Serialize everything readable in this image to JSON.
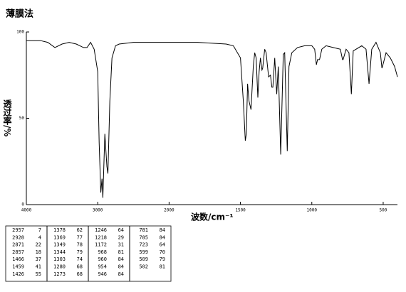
{
  "chart_data": {
    "type": "line",
    "title": "薄膜法",
    "x_label": "波数/cm⁻¹",
    "y_label": "透过率/%",
    "x": [
      4000,
      3800,
      3700,
      3600,
      3500,
      3400,
      3300,
      3200,
      3150,
      3100,
      3050,
      3000,
      2980,
      2957,
      2940,
      2928,
      2900,
      2871,
      2857,
      2830,
      2800,
      2750,
      2700,
      2500,
      2000,
      1800,
      1600,
      1550,
      1500,
      1480,
      1466,
      1459,
      1450,
      1440,
      1426,
      1410,
      1400,
      1390,
      1378,
      1369,
      1360,
      1349,
      1344,
      1330,
      1320,
      1303,
      1290,
      1280,
      1273,
      1260,
      1246,
      1235,
      1218,
      1200,
      1190,
      1172,
      1160,
      1140,
      1100,
      1050,
      1000,
      980,
      968,
      960,
      954,
      946,
      930,
      900,
      850,
      800,
      785,
      781,
      760,
      740,
      723,
      710,
      650,
      620,
      599,
      580,
      550,
      520,
      509,
      502,
      480,
      450,
      420,
      400
    ],
    "series": [
      {
        "name": "spectrum",
        "color": "#000000",
        "values": [
          95,
          95,
          94,
          91,
          93,
          94,
          93,
          91,
          91,
          94,
          90,
          77,
          36,
          7,
          15,
          4,
          41,
          22,
          18,
          60,
          85,
          92,
          93,
          94,
          94,
          94,
          93,
          92,
          85,
          60,
          37,
          41,
          70,
          60,
          55,
          80,
          88,
          85,
          62,
          77,
          85,
          78,
          79,
          90,
          88,
          74,
          75,
          68,
          68,
          85,
          64,
          80,
          29,
          87,
          88,
          31,
          80,
          88,
          91,
          92,
          92,
          90,
          81,
          84,
          84,
          84,
          90,
          92,
          91,
          90,
          84,
          84,
          90,
          88,
          64,
          89,
          92,
          90,
          70,
          90,
          94,
          88,
          79,
          81,
          88,
          85,
          80,
          74
        ]
      }
    ],
    "xlim": [
      4000,
      400
    ],
    "xbreak": 2000,
    "xticks": [
      4000,
      3000,
      2000,
      1500,
      1000,
      500
    ],
    "ylim": [
      0,
      100
    ],
    "yticks": [
      0,
      50,
      100
    ]
  },
  "peak_table": [
    [
      [
        2957,
        7
      ],
      [
        2928,
        4
      ],
      [
        2871,
        22
      ],
      [
        2857,
        18
      ],
      [
        1466,
        37
      ],
      [
        1459,
        41
      ],
      [
        1426,
        55
      ]
    ],
    [
      [
        1378,
        62
      ],
      [
        1369,
        77
      ],
      [
        1349,
        78
      ],
      [
        1344,
        79
      ],
      [
        1303,
        74
      ],
      [
        1280,
        68
      ],
      [
        1273,
        68
      ]
    ],
    [
      [
        1246,
        64
      ],
      [
        1218,
        29
      ],
      [
        1172,
        31
      ],
      [
        968,
        81
      ],
      [
        960,
        84
      ],
      [
        954,
        84
      ],
      [
        946,
        84
      ]
    ],
    [
      [
        781,
        84
      ],
      [
        785,
        84
      ],
      [
        723,
        64
      ],
      [
        599,
        70
      ],
      [
        509,
        79
      ],
      [
        502,
        81
      ]
    ]
  ]
}
